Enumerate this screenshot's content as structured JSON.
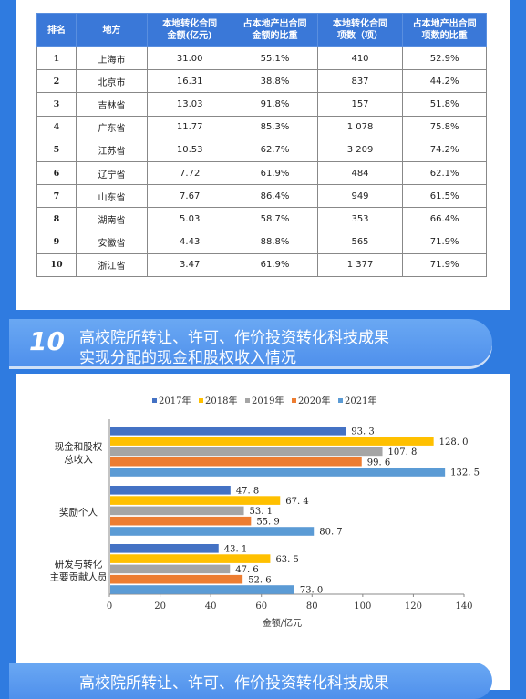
{
  "table": {
    "headers": [
      "排名",
      "地方",
      "本地转化合同\n金额(亿元)",
      "占本地产出合同\n金额的比重",
      "本地转化合同\n项数（项）",
      "占本地产出合同\n项数的比重"
    ],
    "rows": [
      [
        "1",
        "上海市",
        "31.00",
        "55.1%",
        "410",
        "52.9%"
      ],
      [
        "2",
        "北京市",
        "16.31",
        "38.8%",
        "837",
        "44.2%"
      ],
      [
        "3",
        "吉林省",
        "13.03",
        "91.8%",
        "157",
        "51.8%"
      ],
      [
        "4",
        "广东省",
        "11.77",
        "85.3%",
        "1 078",
        "75.8%"
      ],
      [
        "5",
        "江苏省",
        "10.53",
        "62.7%",
        "3 209",
        "74.2%"
      ],
      [
        "6",
        "辽宁省",
        "7.72",
        "61.9%",
        "484",
        "62.1%"
      ],
      [
        "7",
        "山东省",
        "7.67",
        "86.4%",
        "949",
        "61.5%"
      ],
      [
        "8",
        "湖南省",
        "5.03",
        "58.7%",
        "353",
        "66.4%"
      ],
      [
        "9",
        "安徽省",
        "4.43",
        "88.8%",
        "565",
        "71.9%"
      ],
      [
        "10",
        "浙江省",
        "3.47",
        "61.9%",
        "1 377",
        "71.9%"
      ]
    ]
  },
  "section10": {
    "number": "10",
    "title_line1": "高校院所转让、许可、作价投资转化科技成果",
    "title_line2": "实现分配的现金和股权收入情况"
  },
  "next_section": {
    "title_line1": "高校院所转让、许可、作价投资转化科技成果"
  },
  "chart_data": {
    "type": "bar",
    "orientation": "horizontal",
    "categories": [
      "现金和股权\n总收入",
      "奖励个人",
      "研发与转化\n主要贡献人员"
    ],
    "series": [
      {
        "name": "2017年",
        "color": "#4472c4",
        "values": [
          93.3,
          47.8,
          43.1
        ]
      },
      {
        "name": "2018年",
        "color": "#ffc000",
        "values": [
          128.0,
          67.4,
          63.5
        ]
      },
      {
        "name": "2019年",
        "color": "#a5a5a5",
        "values": [
          107.8,
          53.1,
          47.6
        ]
      },
      {
        "name": "2020年",
        "color": "#ed7d31",
        "values": [
          99.6,
          55.9,
          52.6
        ]
      },
      {
        "name": "2021年",
        "color": "#5b9bd5",
        "values": [
          132.5,
          80.7,
          73.0
        ]
      }
    ],
    "value_labels": [
      [
        "93. 3",
        "47. 8",
        "43. 1"
      ],
      [
        "128. 0",
        "67. 4",
        "63. 5"
      ],
      [
        "107. 8",
        "53. 1",
        "47. 6"
      ],
      [
        "99. 6",
        "55. 9",
        "52. 6"
      ],
      [
        "132. 5",
        "80. 7",
        "73. 0"
      ]
    ],
    "xlim": [
      0,
      140
    ],
    "xticks": [
      0,
      20,
      40,
      60,
      80,
      100,
      120,
      140
    ],
    "xlabel": "金额/亿元",
    "legend_position": "top"
  }
}
